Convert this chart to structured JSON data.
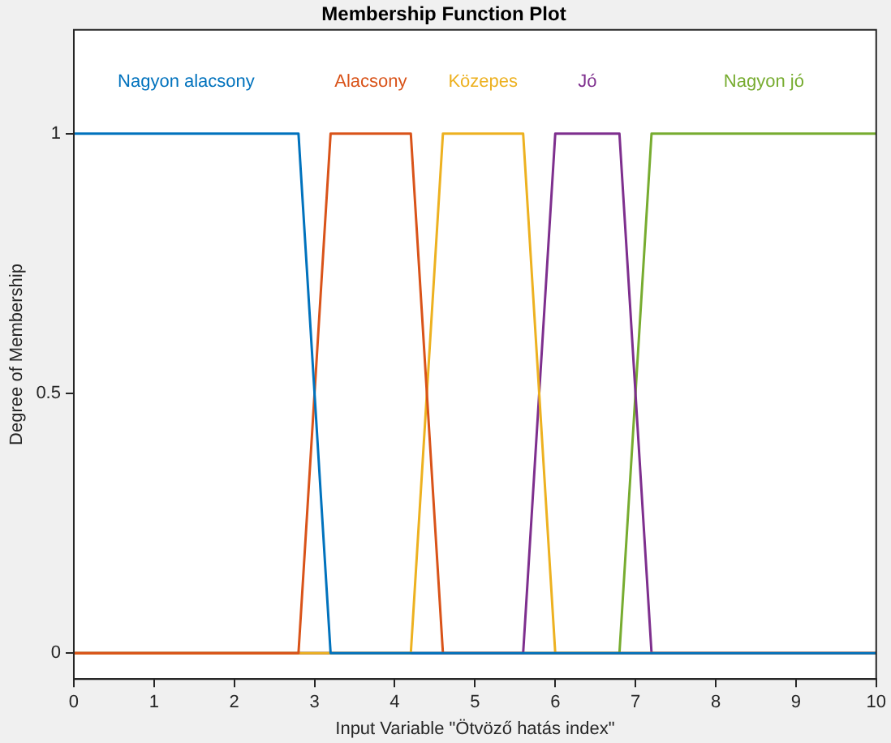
{
  "chart_data": {
    "type": "line",
    "title": "Membership Function Plot",
    "xlabel": "Input Variable \"Ötvöző hatás index\"",
    "ylabel": "Degree of Membership",
    "xlim": [
      0,
      10
    ],
    "ylim": [
      -0.05,
      1.2
    ],
    "xticks": [
      0,
      1,
      2,
      3,
      4,
      5,
      6,
      7,
      8,
      9,
      10
    ],
    "yticks": [
      0,
      0.5,
      1
    ],
    "grid": false,
    "legend": false,
    "series": [
      {
        "name": "Nagyon alacsony",
        "color": "#0072bd",
        "x": [
          0,
          2.8,
          3.2,
          10
        ],
        "values": [
          1,
          1,
          0,
          0
        ]
      },
      {
        "name": "Alacsony",
        "color": "#d95319",
        "x": [
          0,
          2.8,
          3.2,
          4.2,
          4.6,
          10
        ],
        "values": [
          0,
          0,
          1,
          1,
          0,
          0
        ]
      },
      {
        "name": "Közepes",
        "color": "#edb120",
        "x": [
          0,
          4.2,
          4.6,
          5.6,
          6.0,
          10
        ],
        "values": [
          0,
          0,
          1,
          1,
          0,
          0
        ]
      },
      {
        "name": "Jó",
        "color": "#7e2f8e",
        "x": [
          0,
          5.6,
          6.0,
          6.8,
          7.2,
          10
        ],
        "values": [
          0,
          0,
          1,
          1,
          0,
          0
        ]
      },
      {
        "name": "Nagyon jó",
        "color": "#77ac30",
        "x": [
          0,
          6.8,
          7.2,
          10
        ],
        "values": [
          0,
          0,
          1,
          1
        ]
      }
    ]
  }
}
